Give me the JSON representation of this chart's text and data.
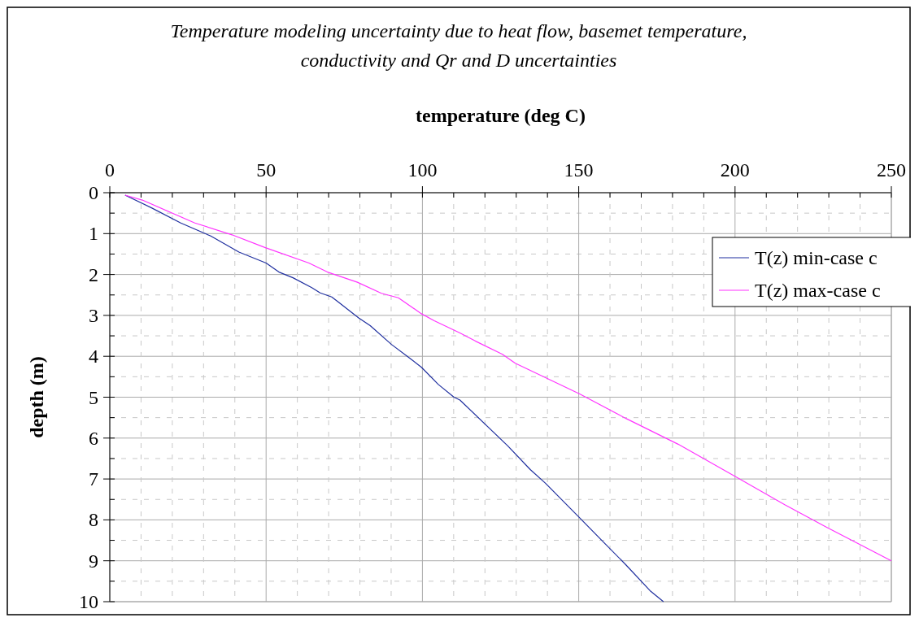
{
  "chart_data": {
    "type": "line",
    "title": "Temperature modeling uncertainty due to heat flow, basemet temperature, conductivity and Qr and D uncertainties",
    "xlabel": "temperature (deg C)",
    "ylabel": "depth (m)",
    "xlim": [
      0,
      250
    ],
    "xticks": [
      0,
      {
        "value": 10,
        "label": null
      },
      {
        "value": 20,
        "label": null
      },
      {
        "value": 30,
        "label": null
      },
      {
        "value": 40,
        "label": null
      },
      50,
      {
        "value": 60,
        "label": null
      },
      {
        "value": 70,
        "label": null
      },
      {
        "value": 80,
        "label": null
      },
      {
        "value": 90,
        "label": null
      },
      100,
      {
        "value": 110,
        "label": null
      },
      {
        "value": 120,
        "label": null
      },
      {
        "value": 130,
        "label": null
      },
      {
        "value": 140,
        "label": null
      },
      150,
      {
        "value": 160,
        "label": null
      },
      {
        "value": 170,
        "label": null
      },
      {
        "value": 180,
        "label": null
      },
      {
        "value": 190,
        "label": null
      },
      200,
      {
        "value": 210,
        "label": null
      },
      {
        "value": 220,
        "label": null
      },
      {
        "value": 230,
        "label": null
      },
      {
        "value": 240,
        "label": null
      },
      250
    ],
    "ylim": [
      10,
      0
    ],
    "yticks": [
      0,
      {
        "value": 0.5,
        "label": null
      },
      1,
      {
        "value": 1.5,
        "label": null
      },
      2,
      {
        "value": 2.5,
        "label": null
      },
      3,
      {
        "value": 3.5,
        "label": null
      },
      4,
      {
        "value": 4.5,
        "label": null
      },
      5,
      {
        "value": 5.5,
        "label": null
      },
      6,
      {
        "value": 6.5,
        "label": null
      },
      7,
      {
        "value": 7.5,
        "label": null
      },
      8,
      {
        "value": 8.5,
        "label": null
      },
      9,
      {
        "value": 9.5,
        "label": null
      },
      10
    ],
    "grid": true,
    "legend": "right",
    "marker": "none",
    "line_style": "solid",
    "series": [
      {
        "name": "T(z) min-case c",
        "color": "#1f2f9f",
        "x": [
          4.9,
          13.6,
          22.7,
          32.3,
          41.3,
          50,
          54.1,
          58.6,
          64.6,
          67.3,
          71,
          73.2,
          79.6,
          83.3,
          90.1,
          95.5,
          99.7,
          105.1,
          110.1,
          112,
          127.3,
          134.5,
          139.3,
          150.3,
          157.5,
          165.1,
          172.8,
          177.1
        ],
        "values": [
          0.06,
          0.38,
          0.74,
          1.06,
          1.45,
          1.72,
          1.94,
          2.08,
          2.32,
          2.45,
          2.55,
          2.68,
          3.06,
          3.25,
          3.71,
          4.02,
          4.27,
          4.69,
          5.0,
          5.07,
          6.19,
          6.77,
          7.1,
          7.95,
          8.51,
          9.1,
          9.73,
          10
        ]
      },
      {
        "name": "T(z) max-case c",
        "color": "#ff33ff",
        "x": [
          4.9,
          10.4,
          27.2,
          39.1,
          49.6,
          63.7,
          69.6,
          79.2,
          86.9,
          92.3,
          99.7,
          103.8,
          112,
          117,
          125.6,
          129.7,
          150.3,
          165.1,
          181.8,
          199.6,
          215.9,
          229.3,
          250
        ],
        "values": [
          0.06,
          0.18,
          0.74,
          1.03,
          1.34,
          1.72,
          1.94,
          2.19,
          2.46,
          2.57,
          2.96,
          3.13,
          3.43,
          3.63,
          3.95,
          4.17,
          4.92,
          5.52,
          6.15,
          6.92,
          7.63,
          8.18,
          9.0
        ]
      }
    ]
  }
}
